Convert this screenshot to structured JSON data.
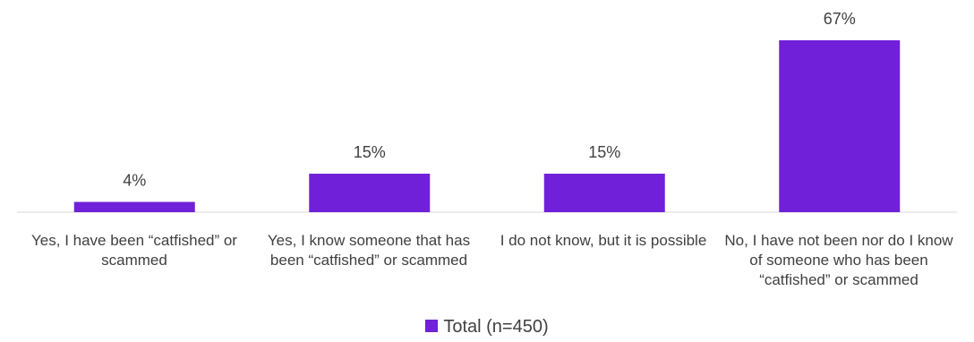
{
  "chart_data": {
    "type": "bar",
    "categories": [
      "Yes, I have been “catfished” or scammed",
      "Yes, I know someone that has been “catfished” or scammed",
      "I do not know, but it is possible",
      "No, I have not been nor do I know of someone who has been “catfished” or scammed"
    ],
    "series": [
      {
        "name": "Total (n=450)",
        "values": [
          4,
          15,
          15,
          67
        ],
        "color": "#7020D8"
      }
    ],
    "value_labels": [
      "4%",
      "15%",
      "15%",
      "67%"
    ],
    "ylim": [
      0,
      67
    ],
    "grid": false,
    "legend_position": "bottom"
  }
}
